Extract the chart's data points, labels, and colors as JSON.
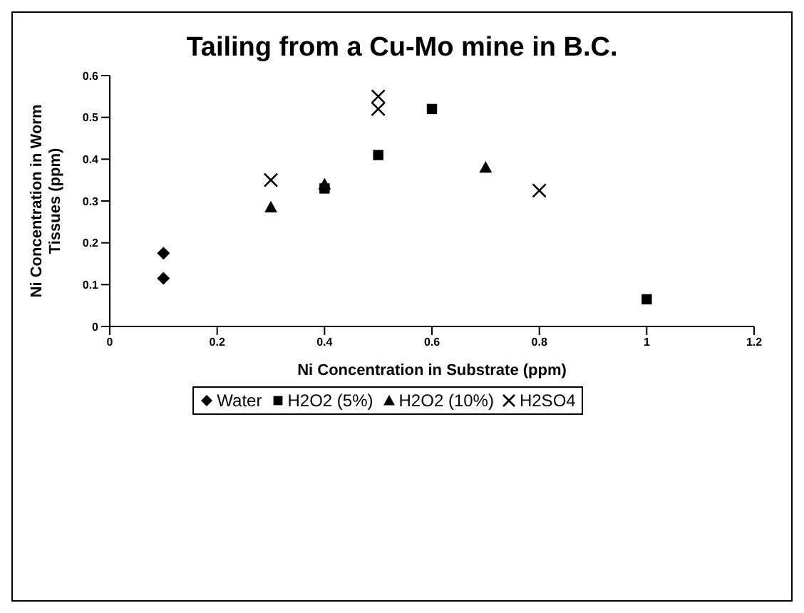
{
  "chart_data": {
    "type": "scatter",
    "title": "Tailing from a Cu-Mo mine in B.C.",
    "xlabel": "Ni Concentration in Substrate (ppm)",
    "ylabel": "Ni Concentration in Worm Tissues (ppm)",
    "xlim": [
      0,
      1.2
    ],
    "xticks": [
      0,
      0.2,
      0.4,
      0.6,
      0.8,
      1,
      1.2
    ],
    "ylim": [
      0,
      0.6
    ],
    "yticks": [
      0,
      0.1,
      0.2,
      0.3,
      0.4,
      0.5,
      0.6
    ],
    "grid": false,
    "legend": "bottom",
    "series": [
      {
        "name": "Water",
        "color": "#000000",
        "marker": "diamond",
        "x": [
          0.1,
          0.1
        ],
        "values": [
          0.175,
          0.115
        ]
      },
      {
        "name": "H2O2 (5%)",
        "color": "#000000",
        "marker": "square",
        "x": [
          0.4,
          0.5,
          0.6,
          1.0
        ],
        "values": [
          0.33,
          0.41,
          0.52,
          0.065
        ]
      },
      {
        "name": "H2O2 (10%)",
        "color": "#000000",
        "marker": "triangle",
        "x": [
          0.3,
          0.4,
          0.7
        ],
        "values": [
          0.285,
          0.34,
          0.38
        ]
      },
      {
        "name": "H2SO4",
        "color": "#000000",
        "marker": "cross",
        "x": [
          0.3,
          0.5,
          0.5,
          0.8
        ],
        "values": [
          0.35,
          0.55,
          0.52,
          0.325
        ]
      }
    ]
  }
}
